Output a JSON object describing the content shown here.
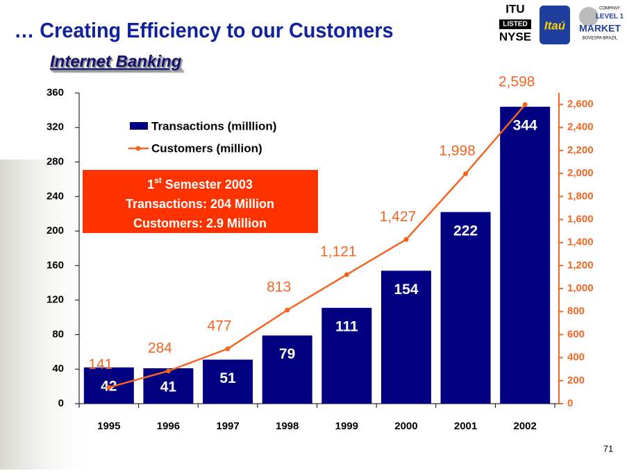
{
  "title": "… Creating Efficiency to our Customers",
  "subtitle": "Internet Banking",
  "page_number": "71",
  "logos": {
    "itu": "ITU",
    "listed": "LISTED",
    "nyse": "NYSE",
    "itau": "Itaú",
    "company": "COMPANY",
    "level": "LEVEL 1",
    "market": "MARKET",
    "bovespa": "BOVESPA BRAZIL"
  },
  "chart_data": {
    "type": "bar-line",
    "categories": [
      "1995",
      "1996",
      "1997",
      "1998",
      "1999",
      "2000",
      "2001",
      "2002"
    ],
    "series": [
      {
        "name": "Transactions (milllion)",
        "color": "#000080",
        "type": "bar",
        "values": [
          42,
          41,
          51,
          79,
          111,
          154,
          222,
          344
        ]
      },
      {
        "name": "Customers (million)",
        "color": "#f26522",
        "type": "line",
        "axis": "y2",
        "values": [
          141,
          284,
          477,
          813,
          1121,
          1427,
          1998,
          2598
        ],
        "value_labels": [
          "141",
          "284",
          "477",
          "813",
          "1,121",
          "1,427",
          "1,998",
          "2,598"
        ]
      }
    ],
    "ylim": [
      0,
      360
    ],
    "yticks": [
      0,
      40,
      80,
      120,
      160,
      200,
      240,
      280,
      320,
      360
    ],
    "y2lim": [
      0,
      2700
    ],
    "y2ticks": [
      0,
      200,
      400,
      600,
      800,
      {
        "value": 1000,
        "label": "1,000"
      },
      {
        "value": 1200,
        "label": "1,200"
      },
      {
        "value": 1400,
        "label": "1,400"
      },
      {
        "value": 1600,
        "label": "1,600"
      },
      {
        "value": 1800,
        "label": "1,800"
      },
      {
        "value": 2000,
        "label": "2,000"
      },
      {
        "value": 2200,
        "label": "2,200"
      },
      {
        "value": 2400,
        "label": "2,400"
      },
      {
        "value": 2600,
        "label": "2,600"
      }
    ],
    "annotation": {
      "ordinal": "1",
      "suffix": "st",
      "rest": "Semester 2003",
      "lines": [
        "Transactions: 204 Million",
        "Customers: 2.9 Million"
      ]
    }
  }
}
